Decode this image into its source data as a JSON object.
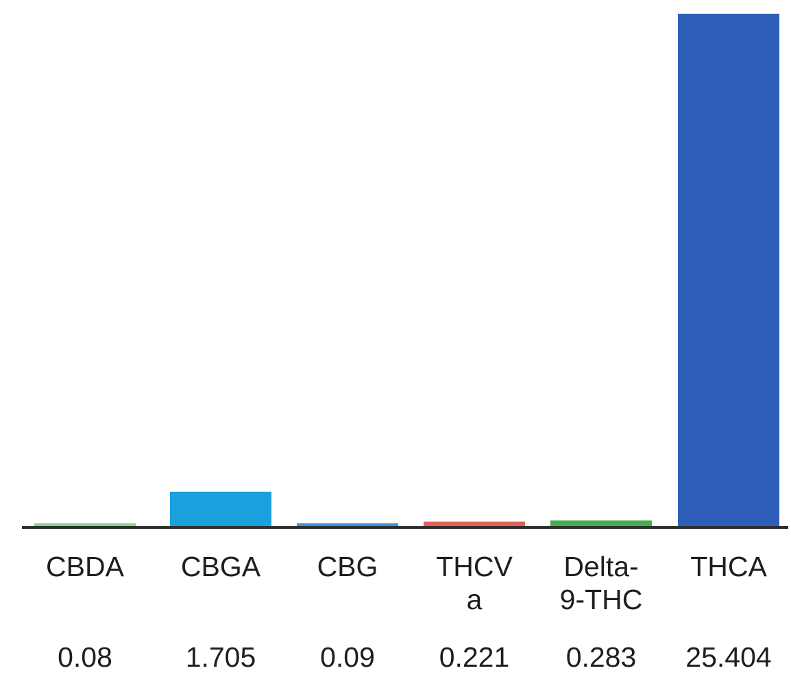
{
  "chart_data": {
    "type": "bar",
    "categories": [
      "CBDA",
      "CBGA",
      "CBG",
      "THCV a",
      "Delta- 9-THC",
      "THCA"
    ],
    "category_label_lines": [
      [
        "CBDA"
      ],
      [
        "CBGA"
      ],
      [
        "CBG"
      ],
      [
        "THCV",
        "a"
      ],
      [
        "Delta-",
        "9-THC"
      ],
      [
        "THCA"
      ]
    ],
    "values": [
      0.08,
      1.705,
      0.09,
      0.221,
      0.283,
      25.404
    ],
    "value_labels": [
      "0.08",
      "1.705",
      "0.09",
      "0.221",
      "0.283",
      "25.404"
    ],
    "colors": [
      "#8fd08a",
      "#1aa0dd",
      "#3d8fdb",
      "#e2605a",
      "#46ad4e",
      "#2d5fba"
    ],
    "axis_color": "#2b2f2b",
    "title": "",
    "xlabel": "",
    "ylabel": "",
    "ylim": [
      0,
      25.404
    ],
    "grid": false,
    "legend": "none"
  }
}
